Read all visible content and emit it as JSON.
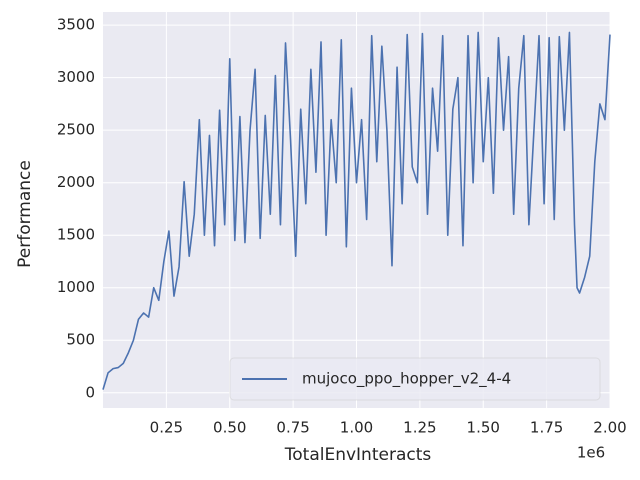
{
  "chart_data": {
    "type": "line",
    "x_label": "TotalEnvInteracts",
    "y_label": "Performance",
    "x_offset_label": "1e6",
    "x": [
      0,
      20000,
      40000,
      60000,
      80000,
      100000,
      120000,
      140000,
      160000,
      180000,
      200000,
      220000,
      240000,
      260000,
      280000,
      300000,
      320000,
      340000,
      360000,
      380000,
      400000,
      420000,
      440000,
      460000,
      480000,
      500000,
      520000,
      540000,
      560000,
      580000,
      600000,
      620000,
      640000,
      660000,
      680000,
      700000,
      720000,
      740000,
      760000,
      780000,
      800000,
      820000,
      840000,
      860000,
      880000,
      900000,
      920000,
      940000,
      960000,
      980000,
      1000000,
      1020000,
      1040000,
      1060000,
      1080000,
      1100000,
      1120000,
      1140000,
      1160000,
      1180000,
      1200000,
      1220000,
      1240000,
      1260000,
      1280000,
      1300000,
      1320000,
      1340000,
      1360000,
      1380000,
      1400000,
      1420000,
      1440000,
      1460000,
      1480000,
      1500000,
      1520000,
      1540000,
      1560000,
      1580000,
      1600000,
      1620000,
      1640000,
      1660000,
      1680000,
      1700000,
      1720000,
      1740000,
      1760000,
      1780000,
      1800000,
      1820000,
      1840000,
      1860000,
      1870000,
      1880000,
      1900000,
      1920000,
      1940000,
      1960000,
      1980000,
      2000000
    ],
    "series": [
      {
        "name": "mujoco_ppo_hopper_v2_4-4",
        "color": "#4c72b0",
        "values": [
          30,
          190,
          230,
          240,
          280,
          380,
          500,
          700,
          760,
          720,
          1000,
          880,
          1250,
          1540,
          920,
          1200,
          2010,
          1300,
          1700,
          2600,
          1500,
          2450,
          1400,
          2690,
          1600,
          3180,
          1450,
          2630,
          1430,
          2500,
          3080,
          1470,
          2640,
          1700,
          3020,
          1600,
          3330,
          2400,
          1300,
          2700,
          1800,
          3080,
          2100,
          3340,
          1500,
          2600,
          2000,
          3360,
          1390,
          2900,
          2000,
          2600,
          1650,
          3400,
          2200,
          3300,
          2500,
          1210,
          3100,
          1800,
          3410,
          2150,
          2000,
          3420,
          1700,
          2900,
          2300,
          3400,
          1500,
          2700,
          3000,
          1400,
          3400,
          2000,
          3430,
          2200,
          3000,
          1900,
          3380,
          2500,
          3200,
          1700,
          2900,
          3400,
          1600,
          2500,
          3400,
          1800,
          3380,
          1650,
          3390,
          2500,
          3430,
          1600,
          1000,
          950,
          1100,
          1300,
          2200,
          2750,
          2600,
          3410
        ]
      }
    ],
    "xlim": [
      0,
      2000000
    ],
    "xticks": [
      {
        "value": 250000,
        "label": "0.25"
      },
      {
        "value": 500000,
        "label": "0.50"
      },
      {
        "value": 750000,
        "label": "0.75"
      },
      {
        "value": 1000000,
        "label": "1.00"
      },
      {
        "value": 1250000,
        "label": "1.25"
      },
      {
        "value": 1500000,
        "label": "1.50"
      },
      {
        "value": 1750000,
        "label": "1.75"
      },
      {
        "value": 2000000,
        "label": "2.00"
      }
    ],
    "ylim": [
      -145,
      3625
    ],
    "yticks": [
      0,
      500,
      1000,
      1500,
      2000,
      2500,
      3000,
      3500
    ],
    "grid": true,
    "background": "#eaeaf2",
    "legend_position": "lower right"
  }
}
